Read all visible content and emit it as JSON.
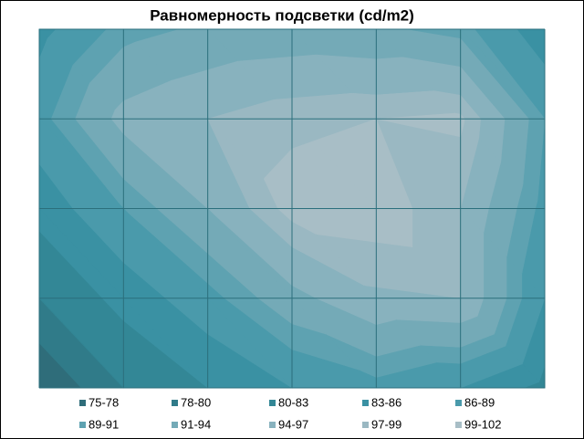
{
  "chart_data": {
    "type": "contour",
    "title": "Равномерность подсветки (cd/m2)",
    "z": [
      [
        85,
        90,
        91.5,
        92,
        91.5,
        90,
        84
      ],
      [
        88,
        95,
        97,
        98.5,
        99,
        99.5,
        89
      ],
      [
        84,
        89,
        94,
        100,
        100.5,
        97,
        88
      ],
      [
        80,
        84,
        88,
        93,
        96.5,
        97,
        86
      ],
      [
        76,
        80,
        83,
        86,
        88,
        86,
        82
      ]
    ],
    "bands": [
      {
        "name": "75-78",
        "lo": 75,
        "hi": 78,
        "color": "#2f6d7a"
      },
      {
        "name": "78-80",
        "lo": 78,
        "hi": 80,
        "color": "#307b89"
      },
      {
        "name": "80-83",
        "lo": 80,
        "hi": 83,
        "color": "#338796"
      },
      {
        "name": "83-86",
        "lo": 83,
        "hi": 86,
        "color": "#3a91a3"
      },
      {
        "name": "86-89",
        "lo": 86,
        "hi": 89,
        "color": "#4a9aab"
      },
      {
        "name": "89-91",
        "lo": 89,
        "hi": 91,
        "color": "#5ea2b1"
      },
      {
        "name": "91-94",
        "lo": 91,
        "hi": 94,
        "color": "#74aab7"
      },
      {
        "name": "94-97",
        "lo": 94,
        "hi": 97,
        "color": "#88b2be"
      },
      {
        "name": "97-99",
        "lo": 97,
        "hi": 99,
        "color": "#9ab8c2"
      },
      {
        "name": "99-102",
        "lo": 99,
        "hi": 102,
        "color": "#a8bec6"
      }
    ],
    "grid": true
  }
}
